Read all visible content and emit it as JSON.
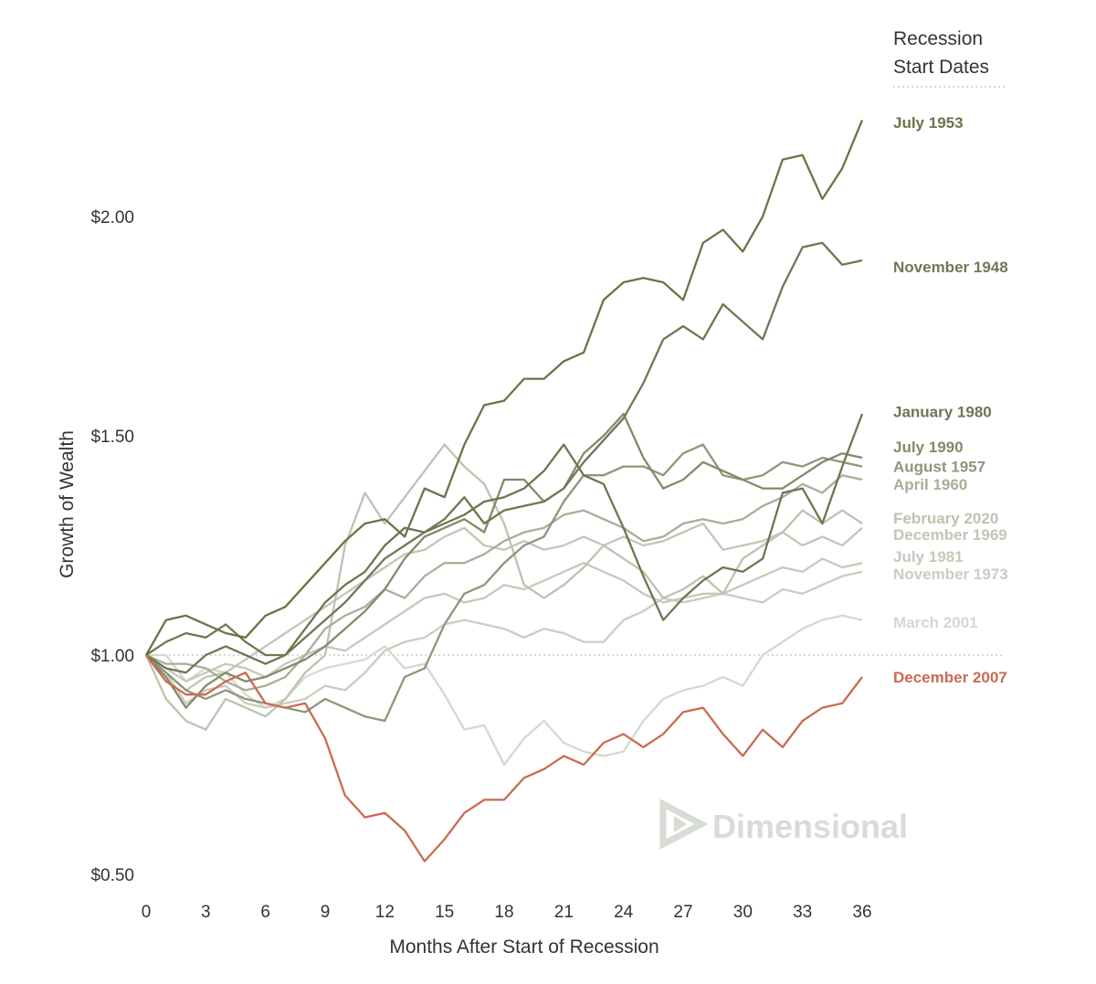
{
  "chart_data": {
    "type": "line",
    "title": "",
    "xlabel": "Months After Start of Recession",
    "ylabel": "Growth of Wealth",
    "xlim": [
      0,
      36
    ],
    "ylim": [
      0.5,
      2.25
    ],
    "xticks": [
      0,
      3,
      6,
      9,
      12,
      15,
      18,
      21,
      24,
      27,
      30,
      33,
      36
    ],
    "yticks": [
      {
        "value": 0.5,
        "label": "$0.50"
      },
      {
        "value": 1.0,
        "label": "$1.00"
      },
      {
        "value": 1.5,
        "label": "$1.50"
      },
      {
        "value": 2.0,
        "label": "$2.00"
      }
    ],
    "reference_line": 1.0,
    "legend": {
      "title_lines": [
        "Recession",
        "Start Dates"
      ],
      "placement": "right"
    },
    "series": [
      {
        "name": "March 2001",
        "color": "#d6d8cf",
        "label_y": 1.075,
        "values": [
          1.0,
          1.0,
          0.94,
          0.97,
          0.96,
          0.91,
          0.88,
          0.9,
          0.95,
          0.97,
          0.98,
          0.99,
          1.02,
          0.97,
          0.98,
          0.91,
          0.83,
          0.84,
          0.75,
          0.81,
          0.85,
          0.8,
          0.78,
          0.77,
          0.78,
          0.85,
          0.9,
          0.92,
          0.93,
          0.95,
          0.93,
          1.0,
          1.03,
          1.06,
          1.08,
          1.09,
          1.08
        ]
      },
      {
        "name": "November 1973",
        "color": "#cacdc0",
        "label_y": 1.185,
        "values": [
          1.0,
          0.96,
          0.89,
          0.92,
          0.93,
          0.89,
          0.88,
          0.89,
          0.9,
          0.93,
          0.92,
          0.96,
          1.01,
          1.03,
          1.04,
          1.07,
          1.08,
          1.07,
          1.06,
          1.04,
          1.06,
          1.05,
          1.03,
          1.03,
          1.08,
          1.1,
          1.13,
          1.12,
          1.13,
          1.14,
          1.13,
          1.12,
          1.15,
          1.14,
          1.16,
          1.18,
          1.19
        ]
      },
      {
        "name": "July 1981",
        "color": "#c6c9bb",
        "label_y": 1.225,
        "values": [
          1.0,
          0.97,
          0.94,
          0.96,
          0.98,
          0.97,
          0.95,
          0.98,
          1.0,
          1.02,
          1.01,
          1.04,
          1.07,
          1.1,
          1.13,
          1.14,
          1.12,
          1.13,
          1.16,
          1.15,
          1.17,
          1.19,
          1.21,
          1.19,
          1.17,
          1.14,
          1.12,
          1.13,
          1.14,
          1.14,
          1.16,
          1.18,
          1.2,
          1.19,
          1.22,
          1.2,
          1.21
        ]
      },
      {
        "name": "December 1969",
        "color": "#c2c6b6",
        "label_y": 1.275,
        "values": [
          1.0,
          0.96,
          0.92,
          0.95,
          0.96,
          0.99,
          1.02,
          1.05,
          1.08,
          1.11,
          1.14,
          1.17,
          1.2,
          1.23,
          1.24,
          1.27,
          1.29,
          1.25,
          1.24,
          1.26,
          1.24,
          1.25,
          1.27,
          1.25,
          1.27,
          1.25,
          1.26,
          1.28,
          1.3,
          1.24,
          1.25,
          1.26,
          1.28,
          1.25,
          1.27,
          1.25,
          1.29
        ]
      },
      {
        "name": "February 2020",
        "color": "#bec2b1",
        "label_y": 1.312,
        "values": [
          1.0,
          0.9,
          0.85,
          0.83,
          0.9,
          0.88,
          0.86,
          0.9,
          0.96,
          1.0,
          1.25,
          1.37,
          1.3,
          1.36,
          1.42,
          1.48,
          1.43,
          1.39,
          1.3,
          1.16,
          1.13,
          1.16,
          1.2,
          1.25,
          1.22,
          1.19,
          1.13,
          1.15,
          1.18,
          1.14,
          1.22,
          1.25,
          1.28,
          1.33,
          1.3,
          1.33,
          1.3
        ]
      },
      {
        "name": "April 1960",
        "color": "#a8ae98",
        "label_y": 1.39,
        "values": [
          1.0,
          0.98,
          0.98,
          0.97,
          0.94,
          0.92,
          0.93,
          0.95,
          1.0,
          1.06,
          1.09,
          1.11,
          1.15,
          1.13,
          1.18,
          1.21,
          1.21,
          1.23,
          1.26,
          1.28,
          1.29,
          1.32,
          1.33,
          1.31,
          1.29,
          1.26,
          1.27,
          1.3,
          1.31,
          1.3,
          1.31,
          1.34,
          1.36,
          1.39,
          1.37,
          1.41,
          1.4
        ]
      },
      {
        "name": "August 1957",
        "color": "#8f967a",
        "label_y": 1.43,
        "values": [
          1.0,
          0.96,
          0.92,
          0.9,
          0.92,
          0.9,
          0.89,
          0.88,
          0.87,
          0.9,
          0.88,
          0.86,
          0.85,
          0.95,
          0.97,
          1.07,
          1.14,
          1.16,
          1.21,
          1.25,
          1.27,
          1.35,
          1.41,
          1.41,
          1.43,
          1.43,
          1.41,
          1.46,
          1.48,
          1.41,
          1.4,
          1.41,
          1.44,
          1.43,
          1.45,
          1.44,
          1.43
        ]
      },
      {
        "name": "July 1990",
        "color": "#838a69",
        "label_y": 1.475,
        "values": [
          1.0,
          0.95,
          0.88,
          0.93,
          0.96,
          0.94,
          0.95,
          0.97,
          0.99,
          1.02,
          1.06,
          1.1,
          1.15,
          1.22,
          1.27,
          1.29,
          1.31,
          1.28,
          1.4,
          1.4,
          1.35,
          1.38,
          1.46,
          1.5,
          1.55,
          1.45,
          1.38,
          1.4,
          1.44,
          1.42,
          1.4,
          1.38,
          1.38,
          1.41,
          1.44,
          1.46,
          1.45
        ]
      },
      {
        "name": "January 1980",
        "color": "#6e7651",
        "label_y": 1.555,
        "values": [
          1.0,
          0.97,
          0.96,
          1.0,
          1.02,
          1.0,
          0.98,
          1.0,
          1.06,
          1.12,
          1.16,
          1.19,
          1.25,
          1.29,
          1.28,
          1.3,
          1.32,
          1.35,
          1.36,
          1.38,
          1.42,
          1.48,
          1.41,
          1.39,
          1.29,
          1.18,
          1.08,
          1.13,
          1.17,
          1.2,
          1.19,
          1.22,
          1.37,
          1.38,
          1.3,
          1.43,
          1.55
        ]
      },
      {
        "name": "November 1948",
        "color": "#707852",
        "label_y": 1.885,
        "values": [
          1.0,
          1.03,
          1.05,
          1.04,
          1.07,
          1.03,
          1.0,
          1.0,
          1.04,
          1.08,
          1.12,
          1.17,
          1.22,
          1.25,
          1.28,
          1.31,
          1.36,
          1.3,
          1.33,
          1.34,
          1.35,
          1.38,
          1.44,
          1.49,
          1.54,
          1.62,
          1.72,
          1.75,
          1.72,
          1.8,
          1.76,
          1.72,
          1.84,
          1.93,
          1.94,
          1.89,
          1.9
        ]
      },
      {
        "name": "July 1953",
        "color": "#6b7447",
        "label_y": 2.215,
        "values": [
          1.0,
          1.08,
          1.09,
          1.07,
          1.05,
          1.04,
          1.09,
          1.11,
          1.16,
          1.21,
          1.26,
          1.3,
          1.31,
          1.27,
          1.38,
          1.36,
          1.48,
          1.57,
          1.58,
          1.63,
          1.63,
          1.67,
          1.69,
          1.81,
          1.85,
          1.86,
          1.85,
          1.81,
          1.94,
          1.97,
          1.92,
          2.0,
          2.13,
          2.14,
          2.04,
          2.11,
          2.22
        ]
      },
      {
        "name": "December 2007",
        "color": "#c96b52",
        "label_y": 0.95,
        "values": [
          1.0,
          0.94,
          0.91,
          0.91,
          0.94,
          0.96,
          0.89,
          0.88,
          0.89,
          0.81,
          0.68,
          0.63,
          0.64,
          0.6,
          0.53,
          0.58,
          0.64,
          0.67,
          0.67,
          0.72,
          0.74,
          0.77,
          0.75,
          0.8,
          0.82,
          0.79,
          0.82,
          0.87,
          0.88,
          0.82,
          0.77,
          0.83,
          0.79,
          0.85,
          0.88,
          0.89,
          0.95
        ]
      }
    ]
  },
  "watermark": {
    "text": "Dimensional",
    "icon": "dimensional-logo-icon"
  }
}
